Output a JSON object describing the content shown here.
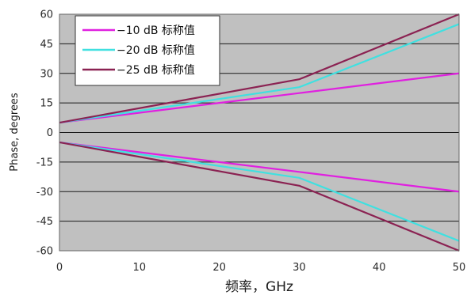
{
  "chart_data": {
    "type": "line",
    "title": "",
    "xlabel": "频率，GHz",
    "ylabel": "Phase, degrees",
    "xlim": [
      0,
      50
    ],
    "ylim": [
      -60,
      60
    ],
    "x_ticks": [
      "0",
      "10",
      "20",
      "30",
      "40",
      "50"
    ],
    "y_ticks": [
      "-60",
      "-45",
      "-30",
      "-15",
      "0",
      "15",
      "30",
      "45",
      "60"
    ],
    "grid": "horizontal",
    "legend_position": "top-left",
    "background_color": "#c0c0c0",
    "series": [
      {
        "name": "−10 dB 标称值",
        "color": "#e020e0",
        "x": [
          0,
          30,
          50
        ],
        "y": [
          5,
          20,
          30
        ]
      },
      {
        "name": "−20 dB 标称值",
        "color": "#40e0e0",
        "x": [
          0,
          30,
          50
        ],
        "y": [
          5,
          23,
          55
        ]
      },
      {
        "name": "−25 dB 标称值",
        "color": "#8b2252",
        "x": [
          0,
          30,
          50
        ],
        "y": [
          5,
          27,
          60
        ]
      },
      {
        "name": "",
        "color": "#e020e0",
        "x": [
          0,
          30,
          50
        ],
        "y": [
          -5,
          -20,
          -30
        ]
      },
      {
        "name": "",
        "color": "#40e0e0",
        "x": [
          0,
          30,
          50
        ],
        "y": [
          -5,
          -23,
          -55
        ]
      },
      {
        "name": "",
        "color": "#8b2252",
        "x": [
          0,
          30,
          50
        ],
        "y": [
          -5,
          -27,
          -60
        ]
      }
    ]
  }
}
